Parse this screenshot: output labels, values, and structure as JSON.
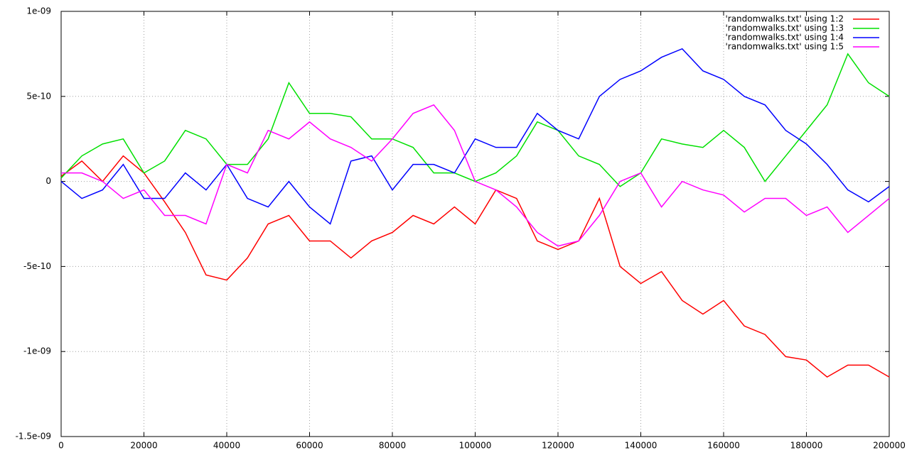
{
  "chart_data": {
    "type": "line",
    "x": [
      0,
      5000,
      10000,
      15000,
      20000,
      25000,
      30000,
      35000,
      40000,
      45000,
      50000,
      55000,
      60000,
      65000,
      70000,
      75000,
      80000,
      85000,
      90000,
      95000,
      100000,
      105000,
      110000,
      115000,
      120000,
      125000,
      130000,
      135000,
      140000,
      145000,
      150000,
      155000,
      160000,
      165000,
      170000,
      175000,
      180000,
      185000,
      190000,
      195000,
      200000
    ],
    "series": [
      {
        "name": "'randomwalks.txt' using 1:2",
        "color": "#ff0000",
        "values": [
          3e-11,
          1.2e-10,
          0,
          1.5e-10,
          5e-11,
          -1.2e-10,
          -3e-10,
          -5.5e-10,
          -5.8e-10,
          -4.5e-10,
          -2.5e-10,
          -2e-10,
          -3.5e-10,
          -3.5e-10,
          -4.5e-10,
          -3.5e-10,
          -3e-10,
          -2e-10,
          -2.5e-10,
          -1.5e-10,
          -2.5e-10,
          -5e-11,
          -1e-10,
          -3.5e-10,
          -4e-10,
          -3.5e-10,
          -1e-10,
          -5e-10,
          -6e-10,
          -5.3e-10,
          -7e-10,
          -7.8e-10,
          -7e-10,
          -8.5e-10,
          -9e-10,
          -1.03e-09,
          -1.05e-09,
          -1.15e-09,
          -1.08e-09,
          -1.08e-09,
          -1.15e-09
        ]
      },
      {
        "name": "'randomwalks.txt' using 1:3",
        "color": "#00e000",
        "values": [
          2e-11,
          1.5e-10,
          2.2e-10,
          2.5e-10,
          5e-11,
          1.2e-10,
          3e-10,
          2.5e-10,
          1e-10,
          1e-10,
          2.5e-10,
          5.8e-10,
          4e-10,
          4e-10,
          3.8e-10,
          2.5e-10,
          2.5e-10,
          2e-10,
          5e-11,
          5e-11,
          0,
          5e-11,
          1.5e-10,
          3.5e-10,
          3e-10,
          1.5e-10,
          1e-10,
          -3e-11,
          5e-11,
          2.5e-10,
          2.2e-10,
          2e-10,
          3e-10,
          2e-10,
          0,
          1.5e-10,
          3e-10,
          4.5e-10,
          7.5e-10,
          5.8e-10,
          5e-10
        ]
      },
      {
        "name": "'randomwalks.txt' using 1:4",
        "color": "#0000ff",
        "values": [
          0,
          -1e-10,
          -5e-11,
          1e-10,
          -1e-10,
          -1e-10,
          5e-11,
          -5e-11,
          1e-10,
          -1e-10,
          -1.5e-10,
          0,
          -1.5e-10,
          -2.5e-10,
          1.2e-10,
          1.5e-10,
          -5e-11,
          1e-10,
          1e-10,
          5e-11,
          2.5e-10,
          2e-10,
          2e-10,
          4e-10,
          3e-10,
          2.5e-10,
          5e-10,
          6e-10,
          6.5e-10,
          7.3e-10,
          7.8e-10,
          6.5e-10,
          6e-10,
          5e-10,
          4.5e-10,
          3e-10,
          2.2e-10,
          1e-10,
          -5e-11,
          -1.2e-10,
          -3e-11
        ]
      },
      {
        "name": "'randomwalks.txt' using 1:5",
        "color": "#ff00ff",
        "values": [
          5e-11,
          5e-11,
          0,
          -1e-10,
          -5e-11,
          -2e-10,
          -2e-10,
          -2.5e-10,
          1e-10,
          5e-11,
          3e-10,
          2.5e-10,
          3.5e-10,
          2.5e-10,
          2e-10,
          1.2e-10,
          2.5e-10,
          4e-10,
          4.5e-10,
          3e-10,
          0,
          -5e-11,
          -1.5e-10,
          -3e-10,
          -3.8e-10,
          -3.5e-10,
          -2e-10,
          0,
          5e-11,
          -1.5e-10,
          0,
          -5e-11,
          -8e-11,
          -1.8e-10,
          -1e-10,
          -1e-10,
          -2e-10,
          -1.5e-10,
          -3e-10,
          -2e-10,
          -1e-10
        ]
      }
    ],
    "xlim": [
      0,
      200000
    ],
    "xticks": [
      0,
      20000,
      40000,
      60000,
      80000,
      100000,
      120000,
      140000,
      160000,
      180000,
      200000
    ],
    "ylim": [
      -1.5e-09,
      1e-09
    ],
    "yticks": [
      {
        "value": -1.5e-09,
        "label": "-1.5e-09"
      },
      {
        "value": -1e-09,
        "label": "-1e-09"
      },
      {
        "value": -5e-10,
        "label": "-5e-10"
      },
      0,
      {
        "value": 5e-10,
        "label": "5e-10"
      },
      {
        "value": 1e-09,
        "label": "1e-09"
      }
    ],
    "grid": true,
    "legend": "top-right"
  }
}
